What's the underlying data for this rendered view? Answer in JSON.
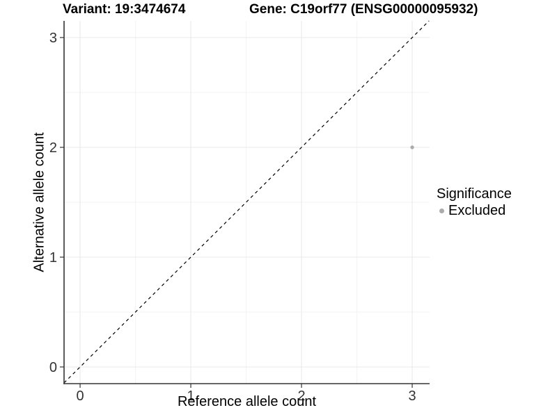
{
  "figure": {
    "title_left": "Variant: 19:3474674",
    "title_right": "Gene: C19orf77 (ENSG00000095932)"
  },
  "chart_data": {
    "type": "scatter",
    "title": "Variant: 19:3474674   Gene: C19orf77 (ENSG00000095932)",
    "xlabel": "Reference allele count",
    "ylabel": "Alternative allele count",
    "xlim": [
      -0.145,
      3.157
    ],
    "ylim": [
      -0.152,
      3.152
    ],
    "xticks": [
      0,
      1,
      2,
      3
    ],
    "yticks": [
      0,
      1,
      2,
      3
    ],
    "grid": "major+minor",
    "legend_position": "right",
    "points": [
      {
        "x": 3,
        "y": 2,
        "series": "Excluded"
      }
    ],
    "reference_line": {
      "kind": "abline",
      "slope": 1,
      "intercept": 0,
      "style": "dashed",
      "color": "#000000"
    },
    "legend": {
      "title": "Significance",
      "entries": [
        {
          "label": "Excluded",
          "color": "#ababab"
        }
      ]
    }
  },
  "colors": {
    "grid_major": "#e8e8e8",
    "grid_minor": "#f3f3f3",
    "axis_line": "#333333",
    "tick_text": "#333333",
    "point": "#ababab"
  }
}
